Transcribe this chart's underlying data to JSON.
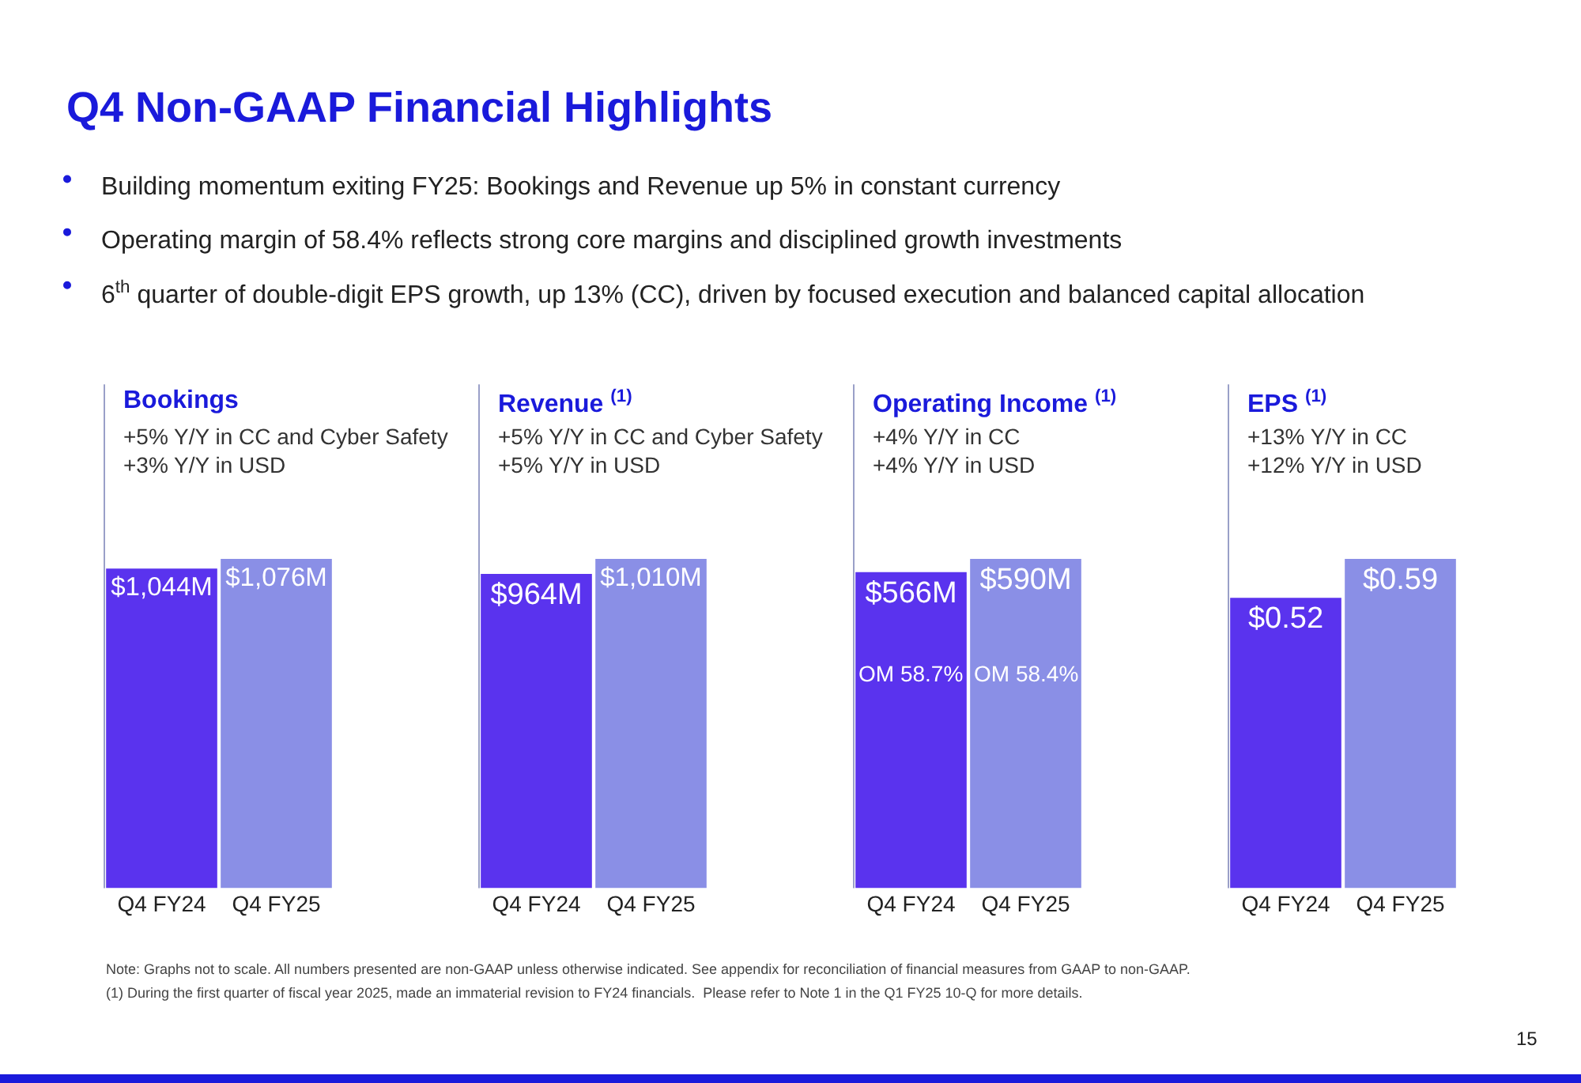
{
  "chart_data": [
    {
      "type": "other",
      "title": "Q4 Non-GAAP Financial Highlights",
      "annotations": [
        "Building momentum exiting FY25: Bookings and Revenue up 5% in constant currency",
        "Operating margin of 58.4% reflects strong core margins and disciplined growth investments",
        "6$^{th}$ quarter of double-digit EPS growth, up 13% (CC), driven by focused execution and balanced capital allocation"
      ]
    },
    {
      "type": "bar",
      "title": "Bookings",
      "subtitle": "+5% Y/Y in CC and Cyber Safety\n+3% Y/Y in USD",
      "categories": [
        "Q4 FY24",
        "Q4 FY25"
      ],
      "values": [
        1044,
        1076
      ],
      "value_labels": [
        "$1,044M",
        "$1,076M"
      ],
      "colors": [
        "#5a33ee",
        "#8a8fe6"
      ]
    },
    {
      "type": "bar",
      "title": "Revenue $^{(1)}$",
      "subtitle": "+5% Y/Y in CC and Cyber Safety\n+5% Y/Y in USD",
      "categories": [
        "Q4 FY24",
        "Q4 FY25"
      ],
      "values": [
        964,
        1010
      ],
      "value_labels": [
        "$964M",
        "$1,010M"
      ],
      "colors": [
        "#5a33ee",
        "#8a8fe6"
      ]
    },
    {
      "type": "bar",
      "title": "Operating Income $^{(1)}$",
      "subtitle": "+4% Y/Y in CC\n+4% Y/Y in USD",
      "categories": [
        "Q4 FY24",
        "Q4 FY25"
      ],
      "values": [
        566,
        590
      ],
      "value_labels": [
        "$566M",
        "$590M"
      ],
      "colors": [
        "#5a33ee",
        "#8a8fe6"
      ],
      "annotations": [
        "OM 58.7%",
        "OM 58.4%"
      ]
    },
    {
      "type": "bar",
      "title": "EPS $^{(1)}$",
      "subtitle": "+13% Y/Y in CC\n+12% Y/Y in USD",
      "categories": [
        "Q4 FY24",
        "Q4 FY25"
      ],
      "values": [
        0.52,
        0.59
      ],
      "value_labels": [
        "$0.52",
        "$0.59"
      ],
      "colors": [
        "#5a33ee",
        "#8a8fe6"
      ]
    },
    {
      "type": "other",
      "annotations": [
        "Note: Graphs not to scale. All numbers presented are non-GAAP unless otherwise indicated. See appendix for reconciliation of financial measures from GAAP to non-GAAP.",
        "(1) During the first quarter of fiscal year 2025, made an immaterial revision to FY24 financials.  Please refer to Note 1 in the Q1 FY25 10-Q for more details.",
        "15"
      ]
    }
  ]
}
